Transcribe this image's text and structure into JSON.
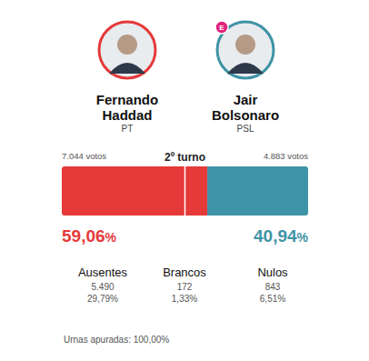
{
  "chart_data": {
    "type": "bar",
    "orientation": "horizontal",
    "stacked": true,
    "title": "2º turno",
    "categories": [
      null
    ],
    "xlim": [
      0,
      100
    ],
    "xticks": [
      50
    ],
    "tick_labels": false,
    "data_labels": true,
    "series": [
      {
        "name": "Fernando Haddad",
        "color": "#e5393a",
        "values": [
          59.06
        ],
        "value_labels": [
          "59,06%"
        ]
      },
      {
        "name": "Jair Bolsonaro",
        "color": "#3f93a6",
        "values": [
          40.94
        ],
        "value_labels": [
          "40,94%"
        ]
      }
    ]
  },
  "candidates": [
    {
      "party": "PT",
      "votes": "7.044 votos"
    },
    {
      "party": "PSL",
      "votes": "4.883 votos",
      "badge": "E"
    }
  ],
  "summary": [
    {
      "label": "Ausentes",
      "votes": "5.490",
      "percent": "29,79%"
    },
    {
      "label": "Brancos",
      "votes": "172",
      "percent": "1,33%"
    },
    {
      "label": "Nulos",
      "votes": "843",
      "percent": "6,51%"
    }
  ],
  "footer": "Urnas apuradas: 100,00%"
}
